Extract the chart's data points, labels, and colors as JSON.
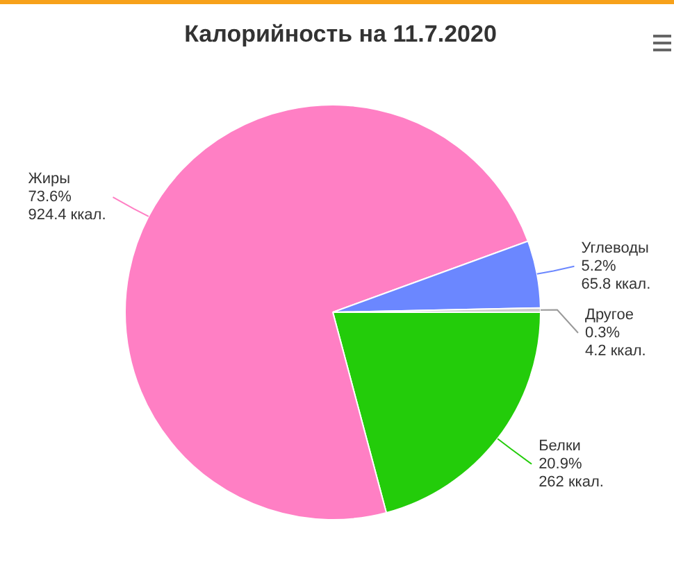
{
  "chart_data": {
    "type": "pie",
    "title": "Калорийность на 11.7.2020",
    "categories": [
      "Белки",
      "Жиры",
      "Углеводы",
      "Другое"
    ],
    "values": [
      262,
      924.4,
      65.8,
      4.2
    ],
    "colors": [
      "#23cc0a",
      "#ff7fc4",
      "#6b87ff",
      "#cccccc"
    ],
    "value_labels": [
      "20.9%\n262 ккал.",
      "73.6%\n924.4 ккал.",
      "5.2%\n65.8 ккал.",
      "0.3%\n4.2 ккал."
    ]
  }
}
